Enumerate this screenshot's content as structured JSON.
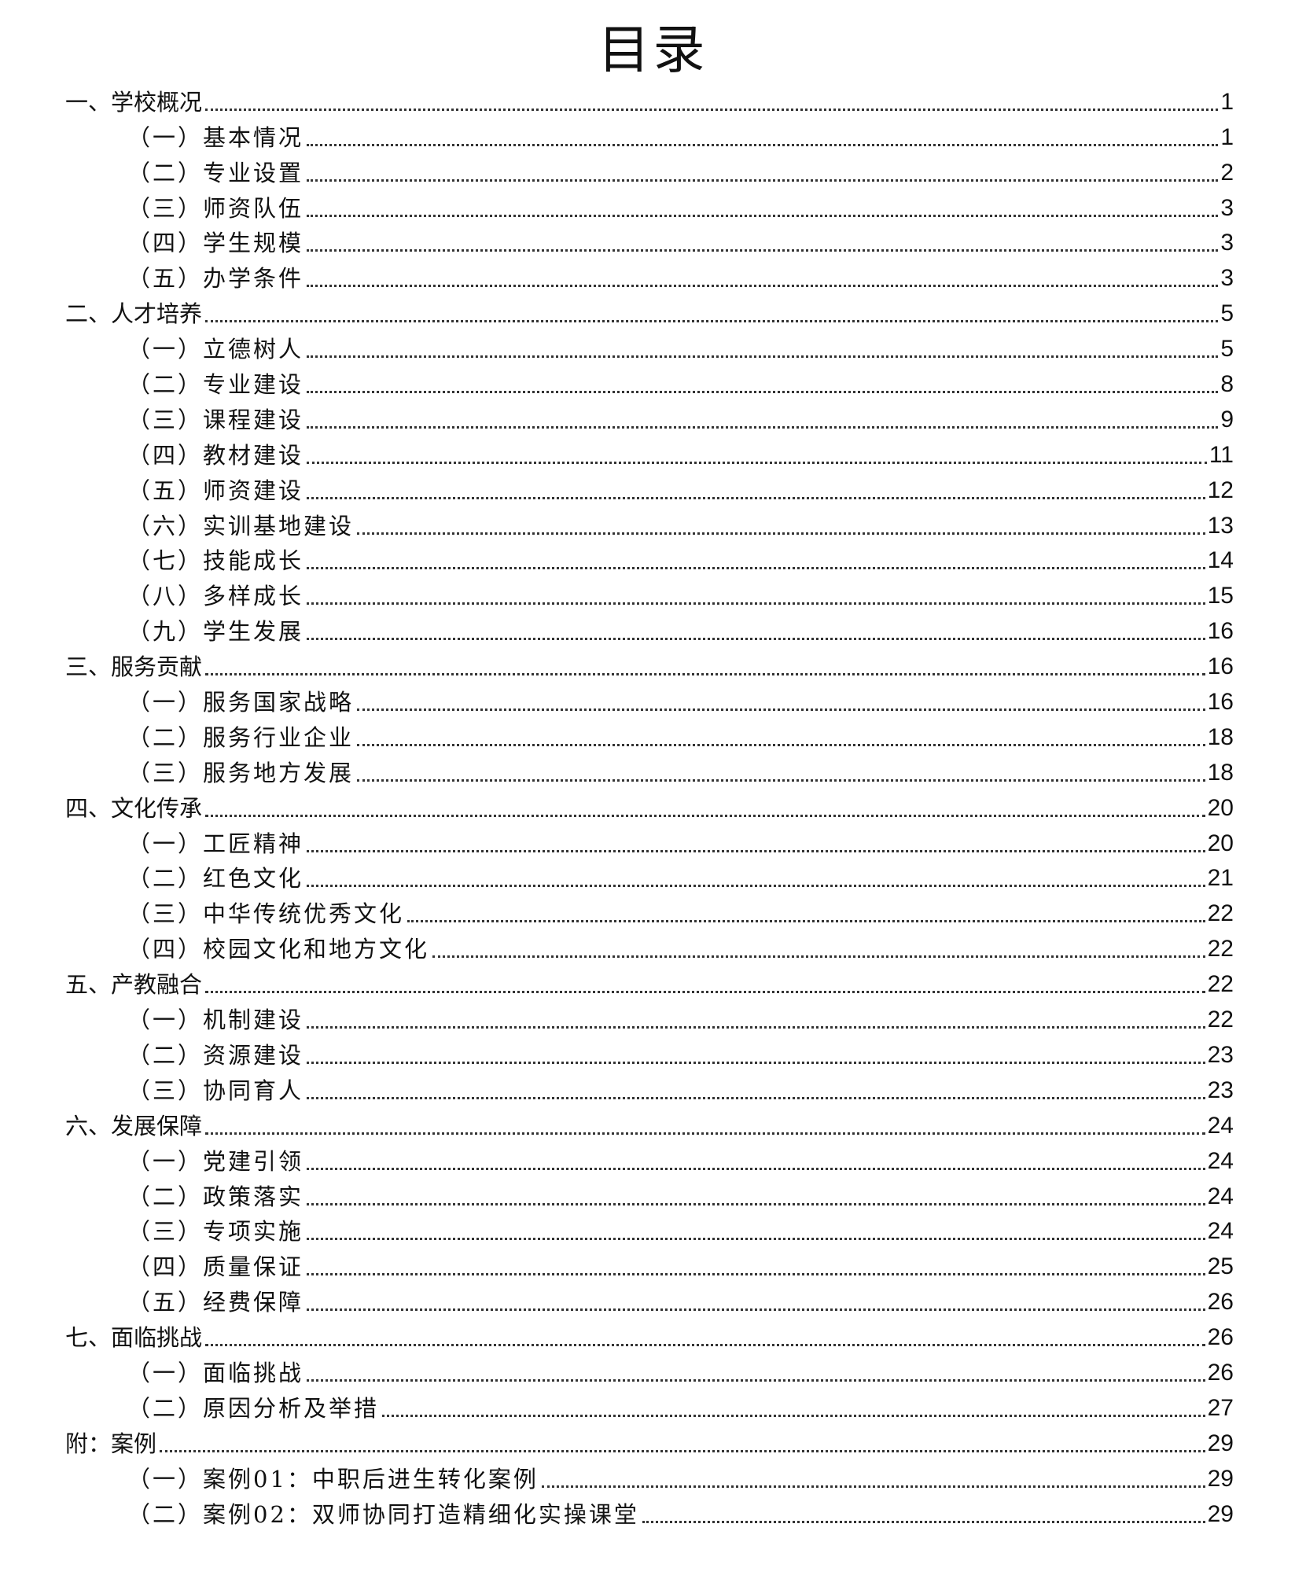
{
  "title": "目录",
  "entries": [
    {
      "level": 1,
      "label": "一、学校概况",
      "page": "1"
    },
    {
      "level": 2,
      "label": "（一）基本情况",
      "page": "1"
    },
    {
      "level": 2,
      "label": "（二）专业设置",
      "page": "2"
    },
    {
      "level": 2,
      "label": "（三）师资队伍",
      "page": "3"
    },
    {
      "level": 2,
      "label": "（四）学生规模",
      "page": "3"
    },
    {
      "level": 2,
      "label": "（五）办学条件",
      "page": "3"
    },
    {
      "level": 1,
      "label": "二、人才培养",
      "page": "5"
    },
    {
      "level": 2,
      "label": "（一）立德树人",
      "page": "5"
    },
    {
      "level": 2,
      "label": "（二）专业建设",
      "page": "8"
    },
    {
      "level": 2,
      "label": "（三）课程建设",
      "page": "9"
    },
    {
      "level": 2,
      "label": "（四）教材建设",
      "page": "11"
    },
    {
      "level": 2,
      "label": "（五）师资建设",
      "page": "12"
    },
    {
      "level": 2,
      "label": "（六）实训基地建设",
      "page": "13"
    },
    {
      "level": 2,
      "label": "（七）技能成长",
      "page": "14"
    },
    {
      "level": 2,
      "label": "（八）多样成长",
      "page": "15"
    },
    {
      "level": 2,
      "label": "（九）学生发展",
      "page": "16"
    },
    {
      "level": 1,
      "label": "三、服务贡献",
      "page": "16"
    },
    {
      "level": 2,
      "label": "（一）服务国家战略",
      "page": "16"
    },
    {
      "level": 2,
      "label": "（二）服务行业企业",
      "page": "18"
    },
    {
      "level": 2,
      "label": "（三）服务地方发展",
      "page": "18"
    },
    {
      "level": 1,
      "label": "四、文化传承",
      "page": "20"
    },
    {
      "level": 2,
      "label": "（一）工匠精神",
      "page": "20"
    },
    {
      "level": 2,
      "label": "（二）红色文化",
      "page": "21"
    },
    {
      "level": 2,
      "label": "（三）中华传统优秀文化",
      "page": "22"
    },
    {
      "level": 2,
      "label": "（四）校园文化和地方文化",
      "page": "22"
    },
    {
      "level": 1,
      "label": "五、产教融合",
      "page": "22"
    },
    {
      "level": 2,
      "label": "（一）机制建设",
      "page": "22"
    },
    {
      "level": 2,
      "label": "（二）资源建设",
      "page": "23"
    },
    {
      "level": 2,
      "label": "（三）协同育人",
      "page": "23"
    },
    {
      "level": 1,
      "label": "六、发展保障",
      "page": "24"
    },
    {
      "level": 2,
      "label": "（一）党建引领",
      "page": "24"
    },
    {
      "level": 2,
      "label": "（二）政策落实",
      "page": "24"
    },
    {
      "level": 2,
      "label": "（三）专项实施",
      "page": "24"
    },
    {
      "level": 2,
      "label": "（四）质量保证",
      "page": "25"
    },
    {
      "level": 2,
      "label": "（五）经费保障",
      "page": "26"
    },
    {
      "level": 1,
      "label": "七、面临挑战",
      "page": "26"
    },
    {
      "level": 2,
      "label": "（一）面临挑战",
      "page": "26"
    },
    {
      "level": 2,
      "label": "（二）原因分析及举措",
      "page": "27"
    },
    {
      "level": 1,
      "label": "附：案例",
      "page": "29"
    },
    {
      "level": 2,
      "label": "（一）案例01：中职后进生转化案例",
      "page": "29"
    },
    {
      "level": 2,
      "label": "（二）案例02：双师协同打造精细化实操课堂",
      "page": "29"
    }
  ]
}
